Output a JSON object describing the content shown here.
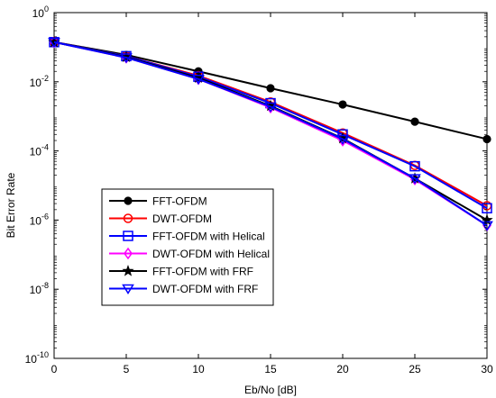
{
  "chart_data": {
    "type": "line",
    "title": "",
    "xlabel": "Eb/No [dB]",
    "ylabel": "Bit Error Rate",
    "xlim": [
      0,
      30
    ],
    "ylim": [
      1e-10,
      1
    ],
    "y_scale": "log",
    "grid": false,
    "legend_position": "lower-left",
    "x_ticks": [
      0,
      5,
      10,
      15,
      20,
      25,
      30
    ],
    "x_tick_labels": [
      "0",
      "5",
      "10",
      "15",
      "20",
      "25",
      "30"
    ],
    "y_ticks": [
      1e-10,
      1e-08,
      1e-06,
      0.0001,
      0.01,
      1
    ],
    "y_tick_labels": [
      {
        "base": "10",
        "exp": "-10"
      },
      {
        "base": "10",
        "exp": "-8"
      },
      {
        "base": "10",
        "exp": "-6"
      },
      {
        "base": "10",
        "exp": "-4"
      },
      {
        "base": "10",
        "exp": "-2"
      },
      {
        "base": "10",
        "exp": "0"
      }
    ],
    "x": [
      0,
      5,
      10,
      15,
      20,
      25,
      30
    ],
    "series": [
      {
        "name": "FFT-OFDM",
        "color": "#000000",
        "marker": "circle-filled",
        "values": [
          0.14,
          0.06,
          0.02,
          0.0065,
          0.0022,
          0.0007,
          0.00022
        ]
      },
      {
        "name": "DWT-OFDM",
        "color": "#ff0000",
        "marker": "circle-open",
        "values": [
          0.14,
          0.055,
          0.015,
          0.0026,
          0.00033,
          3.8e-05,
          2.6e-06
        ]
      },
      {
        "name": "FFT-OFDM with Helical",
        "color": "#0000ff",
        "marker": "square-open",
        "values": [
          0.14,
          0.055,
          0.014,
          0.0024,
          0.0003,
          3.6e-05,
          2.2e-06
        ]
      },
      {
        "name": "DWT-OFDM with Helical",
        "color": "#ff00ff",
        "marker": "diamond-open",
        "values": [
          0.14,
          0.05,
          0.012,
          0.0018,
          0.0002,
          1.5e-05,
          7e-07
        ]
      },
      {
        "name": "FFT-OFDM with FRF",
        "color": "#000000",
        "marker": "star",
        "values": [
          0.14,
          0.052,
          0.013,
          0.002,
          0.00023,
          1.6e-05,
          1e-06
        ]
      },
      {
        "name": "DWT-OFDM with FRF",
        "color": "#0000ff",
        "marker": "triangle-down-open",
        "values": [
          0.14,
          0.05,
          0.012,
          0.0019,
          0.00022,
          1.6e-05,
          7e-07
        ]
      }
    ]
  }
}
